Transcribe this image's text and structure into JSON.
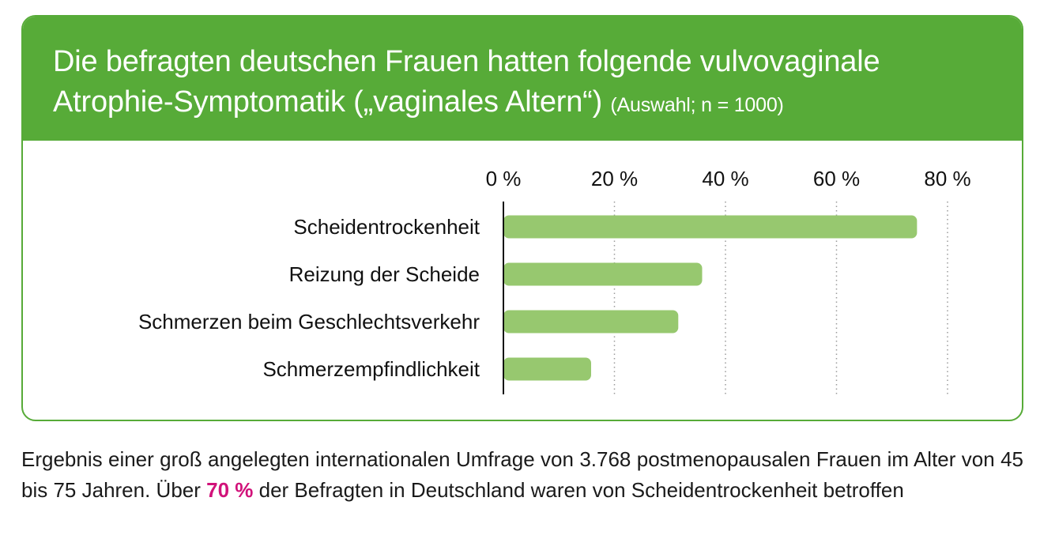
{
  "title": {
    "line1": "Die befragten deutschen Frauen hatten folgende vulvovaginale",
    "line2": "Atrophie-Symptomatik („vaginales Altern“)",
    "subtitle": "(Auswahl; n = 1000)"
  },
  "colors": {
    "header": "#57ab38",
    "bar": "#97c86f",
    "highlight": "#d1127a",
    "axis": "#111111",
    "grid": "#9a9a9a"
  },
  "chart_data": {
    "type": "bar",
    "orientation": "horizontal",
    "categories": [
      "Scheidentrockenheit",
      "Reizung der Scheide",
      "Schmerzen beim Geschlechtsverkehr",
      "Schmerzempfindlichkeit"
    ],
    "values": [
      74.5,
      35.8,
      31.5,
      15.8
    ],
    "xticks": [
      0,
      20,
      40,
      60,
      80
    ],
    "tick_labels": [
      "0 %",
      "20 %",
      "40 %",
      "60 %",
      "80 %"
    ],
    "xlim": [
      0,
      80
    ],
    "grid": "vertical dotted",
    "tick_position": "top"
  },
  "caption": {
    "part1": "Ergebnis einer groß angelegten internationalen Umfrage von 3.768 postmenopausalen Frauen im Alter von 45 bis 75 Jahren. Über ",
    "highlight": "70 %",
    "part2": " der Befragten in Deutschland waren von Scheidentrockenheit betroffen"
  }
}
